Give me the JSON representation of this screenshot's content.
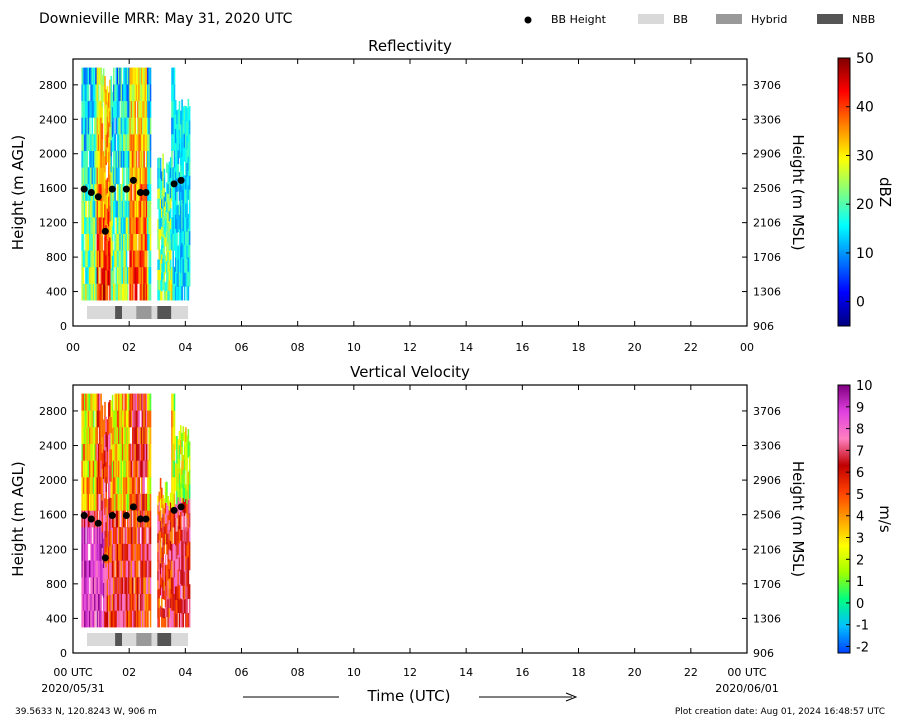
{
  "header": {
    "title": "Downieville MRR:  May 31, 2020 UTC",
    "legend": [
      {
        "label": "BB Height",
        "kind": "dot",
        "color": "#000000"
      },
      {
        "label": "BB",
        "kind": "swatch",
        "color": "#d9d9d9"
      },
      {
        "label": "Hybrid",
        "kind": "swatch",
        "color": "#999999"
      },
      {
        "label": "NBB",
        "kind": "swatch",
        "color": "#555555"
      }
    ]
  },
  "footer": {
    "location": "39.5633 N, 120.8243 W, 906 m",
    "creation": "Plot creation date: Aug 01, 2024 16:48:57 UTC",
    "xlabel": "Time (UTC)",
    "start_date": "2020/05/31",
    "end_date": "2020/06/01"
  },
  "chart_data": [
    {
      "type": "heatmap",
      "title": "Reflectivity",
      "ylabel": "Height (m AGL)",
      "ylabel_right": "Height (m MSL)",
      "xlim": [
        0,
        24
      ],
      "ylim": [
        0,
        3100
      ],
      "x_ticks": [
        "00",
        "02",
        "04",
        "06",
        "08",
        "10",
        "12",
        "14",
        "16",
        "18",
        "20",
        "22",
        "00"
      ],
      "y_ticks": [
        0,
        400,
        800,
        1200,
        1600,
        2000,
        2400,
        2800
      ],
      "y_ticks_right": [
        "906",
        "1306",
        "1706",
        "2106",
        "2506",
        "2906",
        "3306",
        "3706"
      ],
      "colorbar": {
        "label": "dBZ",
        "range": [
          -5,
          50
        ],
        "ticks": [
          0,
          10,
          20,
          30,
          40,
          50
        ],
        "colors": [
          "#00007f",
          "#0000ff",
          "#0080ff",
          "#00ffff",
          "#80ff80",
          "#ffff00",
          "#ff8000",
          "#ff0000",
          "#7f0000"
        ]
      },
      "bb_height": {
        "x": [
          0.4,
          0.65,
          0.9,
          1.15,
          1.4,
          1.9,
          2.15,
          2.4,
          2.6,
          3.6,
          3.85
        ],
        "y": [
          1590,
          1550,
          1500,
          1100,
          1590,
          1590,
          1690,
          1550,
          1550,
          1650,
          1690
        ]
      },
      "bb_type": [
        {
          "start": 0.5,
          "end": 1.5,
          "type": "BB"
        },
        {
          "start": 1.5,
          "end": 1.75,
          "type": "NBB"
        },
        {
          "start": 1.75,
          "end": 2.25,
          "type": "BB"
        },
        {
          "start": 2.25,
          "end": 2.8,
          "type": "Hybrid"
        },
        {
          "start": 2.8,
          "end": 3.0,
          "type": "BB"
        },
        {
          "start": 3.0,
          "end": 3.5,
          "type": "NBB"
        },
        {
          "start": 3.5,
          "end": 4.1,
          "type": "BB"
        }
      ]
    },
    {
      "type": "heatmap",
      "title": "Vertical Velocity",
      "ylabel": "Height (m AGL)",
      "ylabel_right": "Height (m MSL)",
      "xlim": [
        0,
        24
      ],
      "ylim": [
        0,
        3100
      ],
      "x_ticks": [
        "00 UTC",
        "02",
        "04",
        "06",
        "08",
        "10",
        "12",
        "14",
        "16",
        "18",
        "20",
        "22",
        "00 UTC"
      ],
      "y_ticks": [
        0,
        400,
        800,
        1200,
        1600,
        2000,
        2400,
        2800
      ],
      "y_ticks_right": [
        "906",
        "1306",
        "1706",
        "2106",
        "2506",
        "2906",
        "3306",
        "3706"
      ],
      "colorbar": {
        "label": "m/s",
        "range": [
          -2.3,
          10
        ],
        "ticks": [
          -2,
          -1,
          0,
          1,
          2,
          3,
          4,
          5,
          6,
          7,
          8,
          9,
          10
        ],
        "colors": [
          "#0040ff",
          "#00c0ff",
          "#00ff80",
          "#a0ff00",
          "#ffff00",
          "#ffa000",
          "#ff4000",
          "#c00000",
          "#ff80c0",
          "#e040e0",
          "#800080"
        ]
      },
      "bb_height": {
        "x": [
          0.4,
          0.65,
          0.9,
          1.15,
          1.4,
          1.9,
          2.15,
          2.4,
          2.6,
          3.6,
          3.85
        ],
        "y": [
          1590,
          1550,
          1500,
          1100,
          1590,
          1590,
          1690,
          1550,
          1550,
          1650,
          1690
        ]
      },
      "bb_type": [
        {
          "start": 0.5,
          "end": 1.5,
          "type": "BB"
        },
        {
          "start": 1.5,
          "end": 1.75,
          "type": "NBB"
        },
        {
          "start": 1.75,
          "end": 2.25,
          "type": "BB"
        },
        {
          "start": 2.25,
          "end": 2.8,
          "type": "Hybrid"
        },
        {
          "start": 2.8,
          "end": 3.0,
          "type": "BB"
        },
        {
          "start": 3.0,
          "end": 3.5,
          "type": "NBB"
        },
        {
          "start": 3.5,
          "end": 4.1,
          "type": "BB"
        }
      ]
    }
  ]
}
